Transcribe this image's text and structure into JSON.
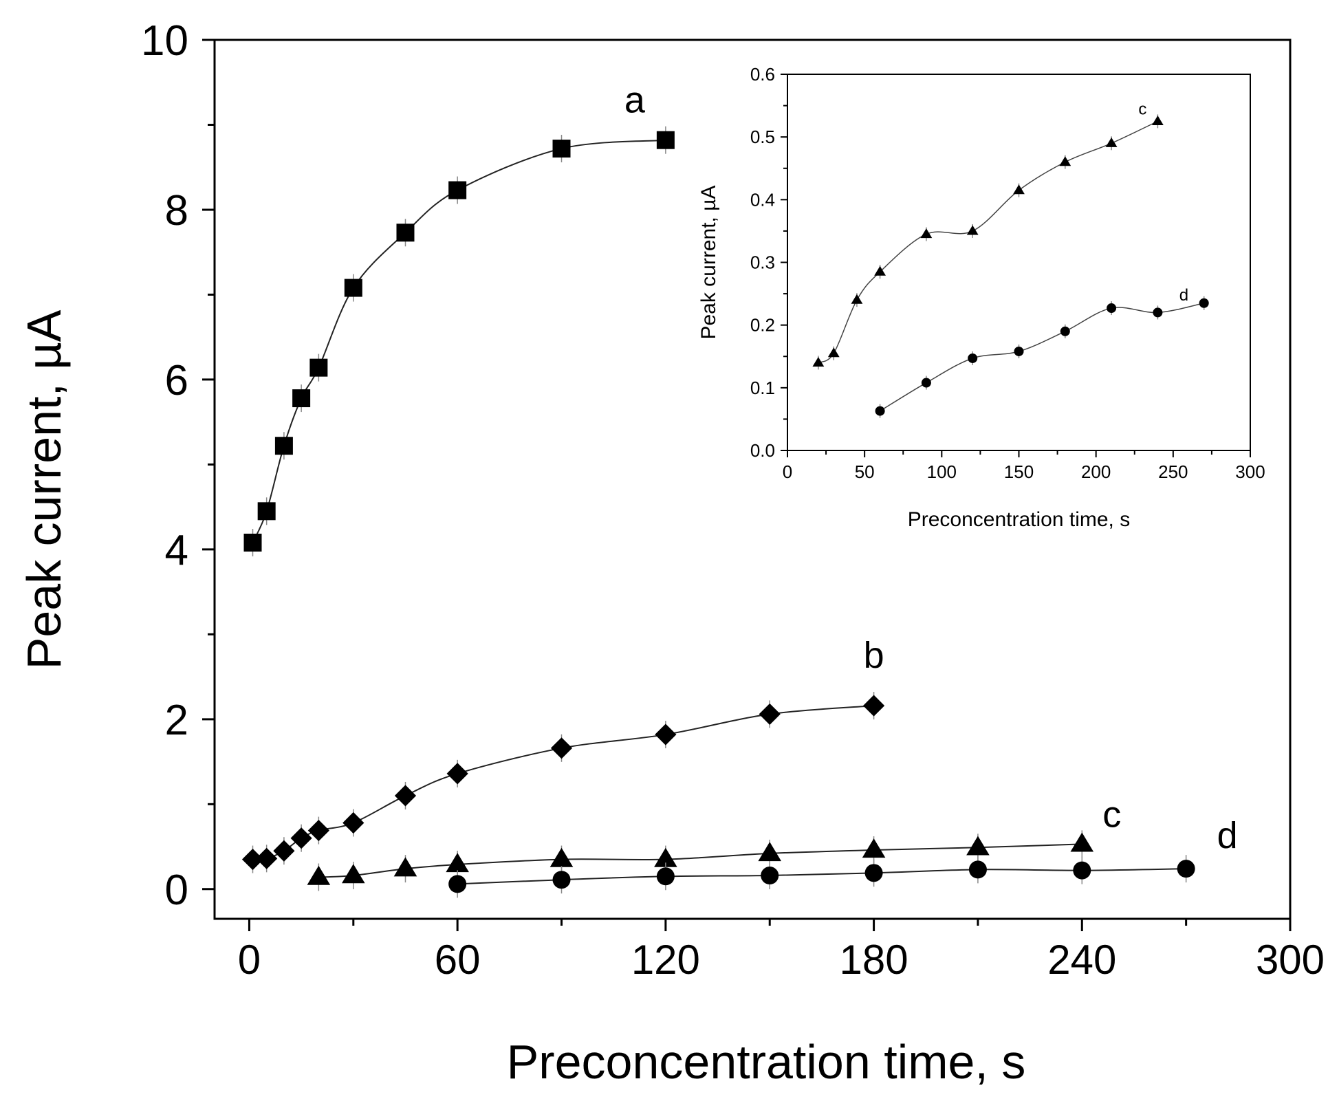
{
  "chart_data": [
    {
      "type": "scatter",
      "title": "",
      "xlabel": "Preconcentration time, s",
      "ylabel": "Peak current, µA",
      "xlim": [
        -10,
        300
      ],
      "ylim": [
        -0.35,
        10
      ],
      "xticks": [
        "0",
        "60",
        "120",
        "180",
        "240",
        "300"
      ],
      "yticks": [
        "0",
        "2",
        "4",
        "6",
        "8",
        "10"
      ],
      "series": [
        {
          "name": "a",
          "label": "a",
          "marker": "square",
          "x": [
            1,
            5,
            10,
            15,
            20,
            30,
            45,
            60,
            90,
            120
          ],
          "y": [
            4.08,
            4.45,
            5.22,
            5.78,
            6.14,
            7.08,
            7.73,
            8.23,
            8.72,
            8.82
          ]
        },
        {
          "name": "b",
          "label": "b",
          "marker": "diamond",
          "x": [
            1,
            5,
            10,
            15,
            20,
            30,
            45,
            60,
            90,
            120,
            150,
            180
          ],
          "y": [
            0.35,
            0.36,
            0.45,
            0.6,
            0.69,
            0.78,
            1.1,
            1.36,
            1.66,
            1.82,
            2.06,
            2.16
          ]
        },
        {
          "name": "c",
          "label": "c",
          "marker": "triangle",
          "x": [
            20,
            30,
            45,
            60,
            90,
            120,
            150,
            180,
            210,
            240
          ],
          "y": [
            0.14,
            0.16,
            0.24,
            0.29,
            0.35,
            0.35,
            0.42,
            0.46,
            0.49,
            0.53
          ]
        },
        {
          "name": "d",
          "label": "d",
          "marker": "circle",
          "x": [
            60,
            90,
            120,
            150,
            180,
            210,
            240,
            270
          ],
          "y": [
            0.06,
            0.11,
            0.15,
            0.16,
            0.19,
            0.23,
            0.22,
            0.24
          ]
        }
      ]
    },
    {
      "type": "scatter",
      "title": "",
      "xlabel": "Preconcentration time, s",
      "ylabel": "Peak current, µA",
      "xlim": [
        0,
        300
      ],
      "ylim": [
        0,
        0.6
      ],
      "xticks": [
        "0",
        "50",
        "100",
        "150",
        "200",
        "250",
        "300"
      ],
      "yticks": [
        "0.0",
        "0.1",
        "0.2",
        "0.3",
        "0.4",
        "0.5",
        "0.6"
      ],
      "series": [
        {
          "name": "c",
          "label": "c",
          "marker": "triangle",
          "x": [
            20,
            30,
            45,
            60,
            90,
            120,
            150,
            180,
            210,
            240
          ],
          "y": [
            0.14,
            0.155,
            0.24,
            0.285,
            0.345,
            0.35,
            0.415,
            0.46,
            0.49,
            0.525
          ]
        },
        {
          "name": "d",
          "label": "d",
          "marker": "circle",
          "x": [
            60,
            90,
            120,
            150,
            180,
            210,
            240,
            270
          ],
          "y": [
            0.063,
            0.108,
            0.147,
            0.158,
            0.19,
            0.227,
            0.22,
            0.235
          ]
        }
      ]
    }
  ]
}
